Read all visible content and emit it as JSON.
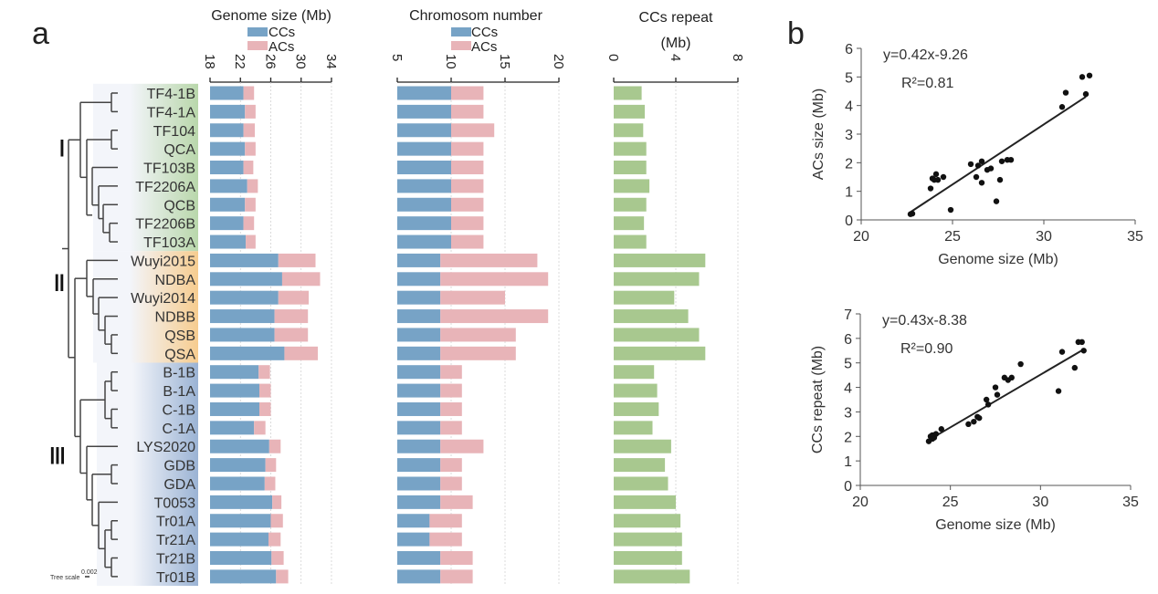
{
  "panel_labels": {
    "a": "a",
    "b": "b"
  },
  "tree": {
    "scale_label": "Tree scale",
    "scale_value": "0.002",
    "groups": [
      {
        "label": "I",
        "color": "#b9d7ab"
      },
      {
        "label": "II",
        "color": "#f6cc8f"
      },
      {
        "label": "III",
        "color": "#9bb3d4"
      }
    ]
  },
  "legend": {
    "ccs": "CCs",
    "acs": "ACs"
  },
  "colors": {
    "ccs": "#77a3c6",
    "acs": "#e8b4b8",
    "repeat": "#a8c88f",
    "axis": "#222222"
  },
  "chart_data": [
    {
      "type": "bar",
      "title": "Genome size (Mb)",
      "orientation": "horizontal-stacked",
      "xlim": [
        18,
        34
      ],
      "ticks": [
        "18",
        "22",
        "26",
        "30",
        "34"
      ],
      "categories": [
        "TF4-1B",
        "TF4-1A",
        "TF104",
        "QCA",
        "TF103B",
        "TF2206A",
        "QCB",
        "TF2206B",
        "TF103A",
        "Wuyi2015",
        "NDBA",
        "Wuyi2014",
        "NDBB",
        "QSB",
        "QSA",
        "B-1B",
        "B-1A",
        "C-1B",
        "C-1A",
        "LYS2020",
        "GDB",
        "GDA",
        "T0053",
        "Tr01A",
        "Tr21A",
        "Tr21B",
        "Tr01B"
      ],
      "group_of": [
        0,
        0,
        0,
        0,
        0,
        0,
        0,
        0,
        0,
        1,
        1,
        1,
        1,
        1,
        1,
        2,
        2,
        2,
        2,
        2,
        2,
        2,
        2,
        2,
        2,
        2,
        2
      ],
      "series": [
        {
          "name": "CCs",
          "values": [
            22.4,
            22.6,
            22.4,
            22.6,
            22.4,
            22.9,
            22.6,
            22.4,
            22.7,
            27.0,
            27.5,
            27.0,
            26.5,
            26.5,
            27.8,
            24.4,
            24.5,
            24.5,
            23.8,
            25.8,
            25.3,
            25.2,
            26.2,
            26.0,
            25.7,
            26.1,
            26.7
          ]
        },
        {
          "name": "ACs",
          "values": [
            1.4,
            1.4,
            1.5,
            1.4,
            1.3,
            1.4,
            1.4,
            1.4,
            1.3,
            4.9,
            5.0,
            4.0,
            4.4,
            4.4,
            4.4,
            1.5,
            1.5,
            1.5,
            1.5,
            1.5,
            1.4,
            1.4,
            1.2,
            1.6,
            1.6,
            1.6,
            1.6
          ]
        }
      ]
    },
    {
      "type": "bar",
      "title": "Chromosom number",
      "orientation": "horizontal-stacked",
      "xlim": [
        5,
        20
      ],
      "ticks": [
        "5",
        "10",
        "15",
        "20"
      ],
      "series": [
        {
          "name": "CCs",
          "values": [
            10,
            10,
            10,
            10,
            10,
            10,
            10,
            10,
            10,
            9,
            9,
            9,
            9,
            9,
            9,
            9,
            9,
            9,
            9,
            9,
            9,
            9,
            9,
            8,
            8,
            9,
            9
          ]
        },
        {
          "name": "ACs",
          "values": [
            3,
            3,
            4,
            3,
            3,
            3,
            3,
            3,
            3,
            9,
            10,
            6,
            10,
            7,
            7,
            2,
            2,
            2,
            2,
            4,
            2,
            2,
            3,
            3,
            3,
            3,
            3
          ]
        }
      ]
    },
    {
      "type": "bar",
      "title": "CCs repeat",
      "title2": "(Mb)",
      "orientation": "horizontal",
      "xlim": [
        0,
        8
      ],
      "ticks": [
        "0",
        "4",
        "8"
      ],
      "values": [
        1.8,
        2.0,
        1.9,
        2.1,
        2.1,
        2.3,
        2.1,
        1.95,
        2.1,
        5.9,
        5.5,
        3.9,
        4.8,
        5.5,
        5.9,
        2.6,
        2.8,
        2.9,
        2.5,
        3.7,
        3.3,
        3.5,
        4.0,
        4.3,
        4.4,
        4.4,
        4.9
      ]
    },
    {
      "type": "scatter",
      "xlabel": "Genome size (Mb)",
      "ylabel": "ACs size (Mb)",
      "xlim": [
        20,
        35
      ],
      "ylim": [
        0,
        6
      ],
      "xticks": [
        "20",
        "25",
        "30",
        "35"
      ],
      "yticks": [
        "0",
        "1",
        "2",
        "3",
        "4",
        "5",
        "6"
      ],
      "equation": "y=0.42x-9.26",
      "r2": "R²=0.81",
      "fit": {
        "slope": 0.42,
        "intercept": -9.26,
        "x_range": [
          22.6,
          32.3
        ]
      },
      "points": [
        [
          22.7,
          0.2
        ],
        [
          22.8,
          0.22
        ],
        [
          23.8,
          1.1
        ],
        [
          23.9,
          1.45
        ],
        [
          24.0,
          1.4
        ],
        [
          24.1,
          1.6
        ],
        [
          24.2,
          1.4
        ],
        [
          24.5,
          1.5
        ],
        [
          24.9,
          0.35
        ],
        [
          26.0,
          1.95
        ],
        [
          26.3,
          1.5
        ],
        [
          26.4,
          1.9
        ],
        [
          26.6,
          2.05
        ],
        [
          26.6,
          1.3
        ],
        [
          26.9,
          1.75
        ],
        [
          27.1,
          1.8
        ],
        [
          27.4,
          0.65
        ],
        [
          27.6,
          1.4
        ],
        [
          27.7,
          2.05
        ],
        [
          28.0,
          2.1
        ],
        [
          28.2,
          2.1
        ],
        [
          31.0,
          3.95
        ],
        [
          31.2,
          4.45
        ],
        [
          32.1,
          5.0
        ],
        [
          32.3,
          4.4
        ],
        [
          32.5,
          5.05
        ]
      ]
    },
    {
      "type": "scatter",
      "xlabel": "Genome size (Mb)",
      "ylabel": "CCs repeat (Mb)",
      "xlim": [
        20,
        35
      ],
      "ylim": [
        0,
        7
      ],
      "xticks": [
        "20",
        "25",
        "30",
        "35"
      ],
      "yticks": [
        "0",
        "1",
        "2",
        "3",
        "4",
        "5",
        "6",
        "7"
      ],
      "equation": "y=0.43x-8.38",
      "r2": "R²=0.90",
      "fit": {
        "slope": 0.43,
        "intercept": -8.38,
        "x_range": [
          23.9,
          32.4
        ]
      },
      "points": [
        [
          23.8,
          1.8
        ],
        [
          23.9,
          2.0
        ],
        [
          24.0,
          1.9
        ],
        [
          24.0,
          2.05
        ],
        [
          24.1,
          1.95
        ],
        [
          24.1,
          2.05
        ],
        [
          24.2,
          2.1
        ],
        [
          24.5,
          2.3
        ],
        [
          26.0,
          2.5
        ],
        [
          26.3,
          2.6
        ],
        [
          26.5,
          2.8
        ],
        [
          26.6,
          2.75
        ],
        [
          27.0,
          3.5
        ],
        [
          27.1,
          3.3
        ],
        [
          27.5,
          4.0
        ],
        [
          27.6,
          3.7
        ],
        [
          28.0,
          4.4
        ],
        [
          28.2,
          4.3
        ],
        [
          28.4,
          4.4
        ],
        [
          28.9,
          4.95
        ],
        [
          31.0,
          3.85
        ],
        [
          31.2,
          5.45
        ],
        [
          31.9,
          4.8
        ],
        [
          32.1,
          5.85
        ],
        [
          32.3,
          5.85
        ],
        [
          32.4,
          5.5
        ]
      ]
    }
  ]
}
